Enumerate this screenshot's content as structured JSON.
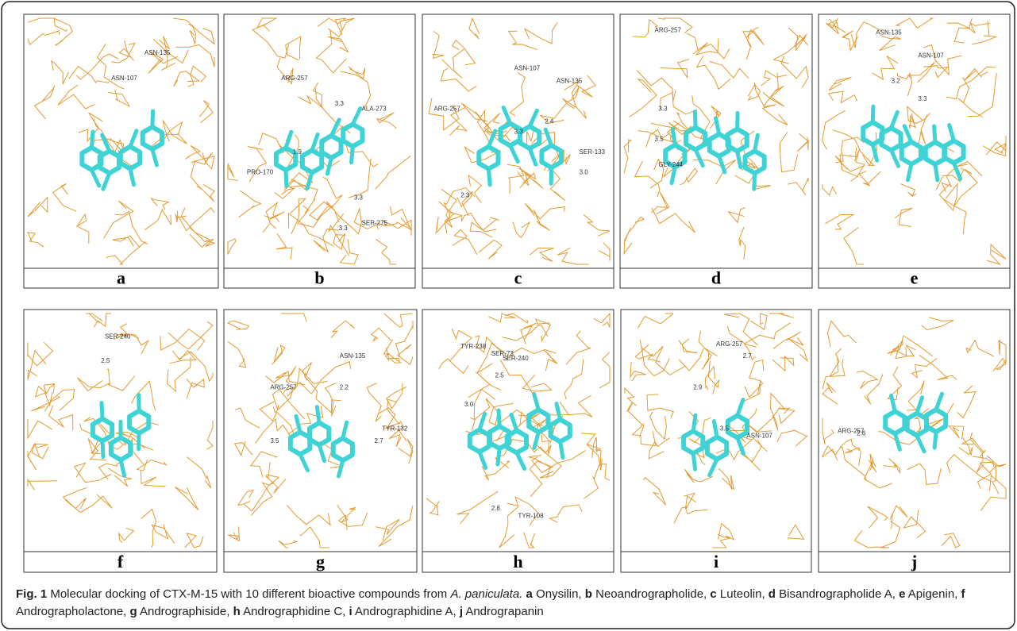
{
  "panels": [
    {
      "letter": "a",
      "annotations": [
        "ASN-135",
        "ASN-107"
      ]
    },
    {
      "letter": "b",
      "annotations": [
        "ARG-257",
        "3.3",
        "ALA-273",
        "1.9",
        "PRO-170",
        "3.3",
        "3.3",
        "SER-275"
      ]
    },
    {
      "letter": "c",
      "annotations": [
        "ASN-107",
        "ASN-135",
        "ARG-257",
        "3.3",
        "2.4",
        "SER-133",
        "3.0",
        "2.3"
      ]
    },
    {
      "letter": "d",
      "annotations": [
        "ARG-257",
        "3.3",
        "3.5",
        "GLY-244"
      ]
    },
    {
      "letter": "e",
      "annotations": [
        "ASN-135",
        "ASN-107",
        "3.2",
        "3.3"
      ]
    },
    {
      "letter": "f",
      "annotations": [
        "SER-240",
        "2.5"
      ]
    },
    {
      "letter": "g",
      "annotations": [
        "ARG-257",
        "ASN-135",
        "2.2",
        "3.5",
        "TYR-132",
        "2.7"
      ]
    },
    {
      "letter": "h",
      "annotations": [
        "TYR-238",
        "SER-73",
        "SER-240",
        "2.5",
        "3.0",
        "2.8",
        "TYR-108"
      ]
    },
    {
      "letter": "i",
      "annotations": [
        "ARG-257",
        "2.7",
        "2.9",
        "3.5",
        "ASN-107"
      ]
    },
    {
      "letter": "j",
      "annotations": [
        "ARG-257",
        "2.6"
      ]
    }
  ],
  "caption": {
    "label": "Fig. 1",
    "text": "Molecular docking of CTX-M-15 with 10 different bioactive compounds from",
    "species": "A. paniculata.",
    "items": [
      {
        "letter": "a",
        "name": "Onysilin,"
      },
      {
        "letter": "b",
        "name": "Neoandrographolide,"
      },
      {
        "letter": "c",
        "name": "Luteolin,"
      },
      {
        "letter": "d",
        "name": "Bisandrographolide A,"
      },
      {
        "letter": "e",
        "name": "Apigenin,"
      },
      {
        "letter": "f",
        "name": "Andrographolactone,"
      },
      {
        "letter": "g",
        "name": "Andrographiside,"
      },
      {
        "letter": "h",
        "name": "Andrographidine C,"
      },
      {
        "letter": "i",
        "name": "Andrographidine A,"
      },
      {
        "letter": "j",
        "name": "Andrograpanin"
      }
    ]
  }
}
